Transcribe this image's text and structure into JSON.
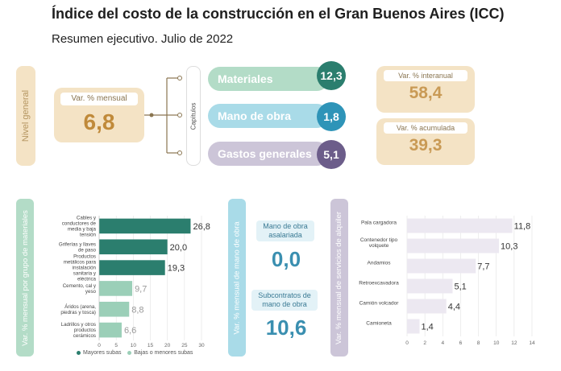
{
  "header": {
    "title": "Índice del costo de la construcción en el Gran Buenos Aires (ICC)",
    "subtitle": "Resumen ejecutivo. Julio de 2022"
  },
  "top": {
    "nivel_general_label": "Nivel general",
    "mensual": {
      "label": "Var. % mensual",
      "value": "6,8"
    },
    "capitulos_label": "Capítulos",
    "capitulos": [
      {
        "label": "Materiales",
        "value": "12,3"
      },
      {
        "label": "Mano de obra",
        "value": "1,8"
      },
      {
        "label": "Gastos generales",
        "value": "5,1"
      }
    ],
    "interanual": {
      "label": "Var. % interanual",
      "value": "58,4"
    },
    "acumulada": {
      "label": "Var. % acumulada",
      "value": "39,3"
    }
  },
  "colors": {
    "teal_dark": "#2b7e6e",
    "teal_light": "#9bcfb8",
    "blue": "#2e94b8",
    "purple": "#6c5d8a",
    "lilac_bar": "#ece8f1",
    "sand": "#f4e3c5"
  },
  "materiales_panel": {
    "axis_label": "Var. % mensual por grupo de materiales",
    "legend": {
      "high": "Mayores subas",
      "low": "Bajas o menores subas"
    }
  },
  "mano_obra_panel": {
    "axis_label": "Var. % mensual de mano de obra",
    "asalariada": {
      "label": "Mano de obra asalariada",
      "value": "0,0"
    },
    "subcontratos": {
      "label": "Subcontratos de mano de obra",
      "value": "10,6"
    }
  },
  "alquiler_panel": {
    "axis_label": "Var. % mensual de servicios de alquiler"
  },
  "chart_data": [
    {
      "type": "bar",
      "orientation": "horizontal",
      "categories": [
        "Cables y conductores de media y baja tensión",
        "Griferías y llaves de paso",
        "Productos metálicos para instalación sanitaria y eléctrica",
        "Cemento, cal y yeso",
        "Áridos (arena, piedras y tosca)",
        "Ladrillos y otros productos cerámicos"
      ],
      "values": [
        26.8,
        20.0,
        19.3,
        9.7,
        8.8,
        6.6
      ],
      "value_labels": [
        "26,8",
        "20,0",
        "19,3",
        "9,7",
        "8,8",
        "6,6"
      ],
      "groups": [
        "high",
        "high",
        "high",
        "low",
        "low",
        "low"
      ],
      "xlim": [
        0,
        30
      ],
      "xticks": [
        0,
        5,
        10,
        15,
        20,
        25,
        30
      ],
      "grid": true
    },
    {
      "type": "bar",
      "orientation": "horizontal",
      "categories": [
        "Pala cargadora",
        "Contenedor tipo volquete",
        "Andamios",
        "Retroexcavadora",
        "Camión volcador",
        "Camioneta"
      ],
      "values": [
        11.8,
        10.3,
        7.7,
        5.1,
        4.4,
        1.4
      ],
      "value_labels": [
        "11,8",
        "10,3",
        "7,7",
        "5,1",
        "4,4",
        "1,4"
      ],
      "xlim": [
        0,
        14
      ],
      "xticks": [
        0,
        2,
        4,
        6,
        8,
        10,
        12,
        14
      ],
      "grid": true
    }
  ]
}
